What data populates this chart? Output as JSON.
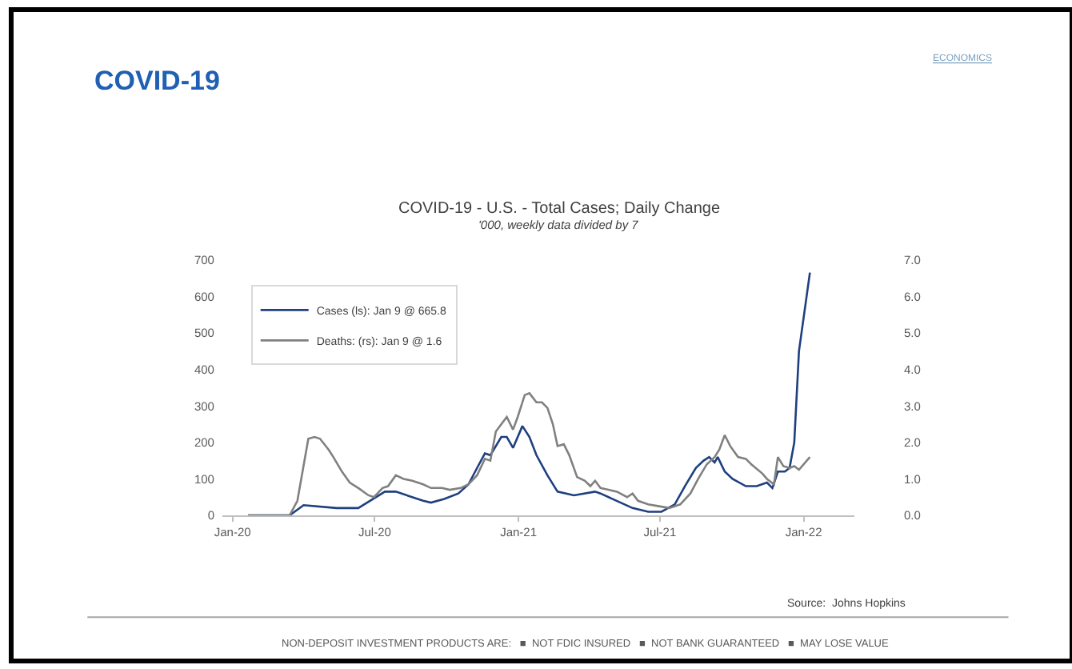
{
  "chart_data": {
    "type": "line",
    "title": "COVID-19 - U.S. - Total Cases; Daily Change",
    "subtitle": "'000, weekly data divided by 7",
    "annotations": [
      "COVID-19",
      "ECONOMICS",
      "Source:  Johns Hopkins",
      "NON-DEPOSIT INVESTMENT PRODUCTS ARE:   ■  NOT FDIC INSURED   ■  NOT BANK GUARANTEED   ■  MAY LOSE VALUE"
    ],
    "series": [
      {
        "name": "Cases (ls): Jan 9 @ 665.8",
        "color": "#1f3f7f",
        "x": [
          "2020-01-21",
          "2020-03-14",
          "2020-04-01",
          "2020-05-13",
          "2020-06-10",
          "2020-07-14",
          "2020-07-28",
          "2020-09-01",
          "2020-09-11",
          "2020-09-28",
          "2020-10-16",
          "2020-10-29",
          "2020-11-09",
          "2020-11-19",
          "2020-11-26",
          "2020-12-10",
          "2020-12-17",
          "2020-12-25",
          "2021-01-06",
          "2021-01-15",
          "2021-01-24",
          "2021-02-07",
          "2021-02-20",
          "2021-03-13",
          "2021-04-09",
          "2021-04-16",
          "2021-05-27",
          "2021-06-16",
          "2021-07-03",
          "2021-07-20",
          "2021-08-02",
          "2021-08-16",
          "2021-08-26",
          "2021-09-02",
          "2021-09-09",
          "2021-09-13",
          "2021-09-22",
          "2021-10-02",
          "2021-10-19",
          "2021-11-02",
          "2021-11-15",
          "2021-11-22",
          "2021-11-29",
          "2021-12-08",
          "2021-12-14",
          "2021-12-20",
          "2021-12-26",
          "2022-01-09"
        ],
        "values": [
          0,
          0,
          28,
          20,
          20,
          65,
          65,
          40,
          35,
          45,
          60,
          85,
          130,
          170,
          165,
          215,
          215,
          185,
          245,
          215,
          165,
          110,
          65,
          55,
          65,
          60,
          20,
          10,
          10,
          30,
          80,
          130,
          150,
          160,
          145,
          160,
          120,
          100,
          80,
          80,
          90,
          75,
          120,
          120,
          130,
          200,
          450,
          665.8
        ]
      },
      {
        "name": "Deaths: (rs): Jan 9 @ 1.6",
        "color": "#808080",
        "axis": "y2",
        "x": [
          "2020-01-21",
          "2020-03-14",
          "2020-03-24",
          "2020-04-07",
          "2020-04-15",
          "2020-04-22",
          "2020-05-03",
          "2020-05-09",
          "2020-05-20",
          "2020-05-30",
          "2020-06-10",
          "2020-06-23",
          "2020-06-30",
          "2020-07-11",
          "2020-07-18",
          "2020-07-28",
          "2020-08-07",
          "2020-08-18",
          "2020-09-01",
          "2020-09-11",
          "2020-09-25",
          "2020-10-05",
          "2020-10-19",
          "2020-10-29",
          "2020-11-09",
          "2020-11-19",
          "2020-11-26",
          "2020-12-03",
          "2020-12-17",
          "2020-12-25",
          "2020-12-31",
          "2021-01-09",
          "2021-01-15",
          "2021-01-24",
          "2021-01-31",
          "2021-02-07",
          "2021-02-14",
          "2021-02-20",
          "2021-02-28",
          "2021-03-07",
          "2021-03-17",
          "2021-03-27",
          "2021-04-03",
          "2021-04-09",
          "2021-04-16",
          "2021-05-07",
          "2021-05-20",
          "2021-05-27",
          "2021-06-03",
          "2021-06-16",
          "2021-06-30",
          "2021-07-13",
          "2021-07-27",
          "2021-08-09",
          "2021-08-19",
          "2021-08-30",
          "2021-09-09",
          "2021-09-15",
          "2021-09-22",
          "2021-09-29",
          "2021-10-09",
          "2021-10-19",
          "2021-10-26",
          "2021-11-09",
          "2021-11-15",
          "2021-11-24",
          "2021-11-29",
          "2021-12-06",
          "2021-12-14",
          "2021-12-20",
          "2021-12-26",
          "2022-01-09"
        ],
        "values": [
          0,
          0,
          0.4,
          2.1,
          2.15,
          2.1,
          1.8,
          1.6,
          1.2,
          0.9,
          0.75,
          0.55,
          0.5,
          0.75,
          0.8,
          1.1,
          1.0,
          0.95,
          0.85,
          0.75,
          0.75,
          0.7,
          0.75,
          0.85,
          1.1,
          1.55,
          1.5,
          2.3,
          2.7,
          2.35,
          2.7,
          3.3,
          3.35,
          3.1,
          3.1,
          2.95,
          2.5,
          1.9,
          1.95,
          1.65,
          1.05,
          0.95,
          0.8,
          0.95,
          0.75,
          0.65,
          0.5,
          0.6,
          0.4,
          0.3,
          0.25,
          0.2,
          0.3,
          0.6,
          1.0,
          1.4,
          1.6,
          1.8,
          2.2,
          1.9,
          1.6,
          1.55,
          1.4,
          1.15,
          1.0,
          0.85,
          1.6,
          1.35,
          1.3,
          1.35,
          1.25,
          1.6
        ]
      }
    ],
    "xlim": [
      "2019-12-19",
      "2022-03-07"
    ],
    "xticks": [
      {
        "value": "2020-01-01",
        "label": "Jan-20"
      },
      {
        "value": "2020-07-01",
        "label": "Jul-20"
      },
      {
        "value": "2021-01-01",
        "label": "Jan-21"
      },
      {
        "value": "2021-07-01",
        "label": "Jul-21"
      },
      {
        "value": "2022-01-01",
        "label": "Jan-22"
      }
    ],
    "ylim": [
      0,
      700
    ],
    "yticks": [
      0,
      100,
      200,
      300,
      400,
      500,
      600,
      700
    ],
    "y2lim": [
      0,
      7
    ],
    "y2ticks": [
      {
        "value": 0,
        "label": "0.0"
      },
      {
        "value": 1,
        "label": "1.0"
      },
      {
        "value": 2,
        "label": "2.0"
      },
      {
        "value": 3,
        "label": "3.0"
      },
      {
        "value": 4,
        "label": "4.0"
      },
      {
        "value": 5,
        "label": "5.0"
      },
      {
        "value": 6,
        "label": "6.0"
      },
      {
        "value": 7,
        "label": "7.0"
      }
    ],
    "legend": "top left",
    "marker": "none",
    "line_style": "solid"
  }
}
